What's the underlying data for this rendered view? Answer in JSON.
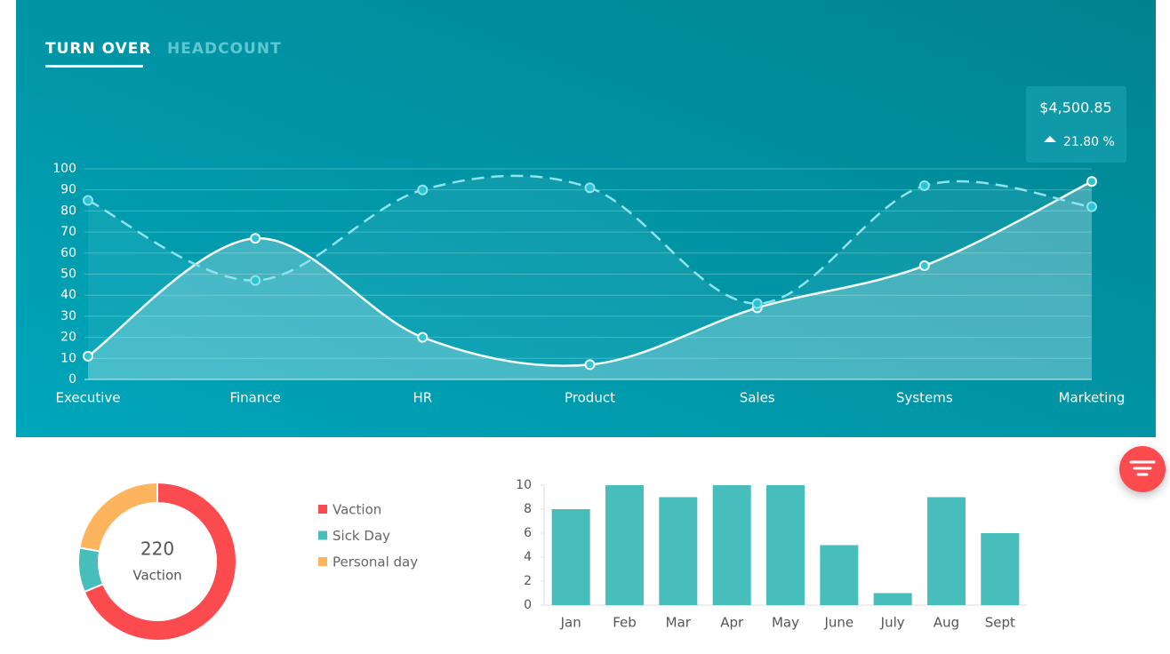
{
  "tabs": [
    "TURN OVER",
    "HEADCOUNT"
  ],
  "stat": {
    "value": "$4,500.85",
    "change": "21.80 %"
  },
  "chart_data": [
    {
      "type": "line",
      "categories": [
        "Executive",
        "Finance",
        "HR",
        "Product",
        "Sales",
        "Systems",
        "Marketing"
      ],
      "series": [
        {
          "color": "#ffffff",
          "dash": false,
          "values": [
            11,
            67,
            20,
            7,
            34,
            54,
            94
          ]
        },
        {
          "color": "#8fe3ec",
          "dash": true,
          "values": [
            85,
            47,
            90,
            91,
            36,
            92,
            82
          ]
        }
      ],
      "ylim": [
        0,
        100
      ],
      "yticks": [
        0,
        10,
        20,
        30,
        40,
        50,
        60,
        70,
        80,
        90,
        100
      ],
      "grid": true
    },
    {
      "type": "doughnut",
      "categories": [
        "Vaction",
        "Sick Day",
        "Personal day"
      ],
      "values": [
        220,
        29,
        71
      ],
      "colors": [
        "#fc4b4f",
        "#47bebb",
        "#fdb45c"
      ]
    },
    {
      "type": "bar",
      "categories": [
        "Jan",
        "Feb",
        "Mar",
        "Apr",
        "May",
        "June",
        "July",
        "Aug",
        "Sept"
      ],
      "values": [
        8,
        10,
        9,
        10,
        10,
        5,
        1,
        9,
        6
      ],
      "color": "#47bebb",
      "ylim": [
        0,
        10
      ],
      "yticks": [
        0,
        2,
        4,
        6,
        8,
        10
      ]
    }
  ]
}
